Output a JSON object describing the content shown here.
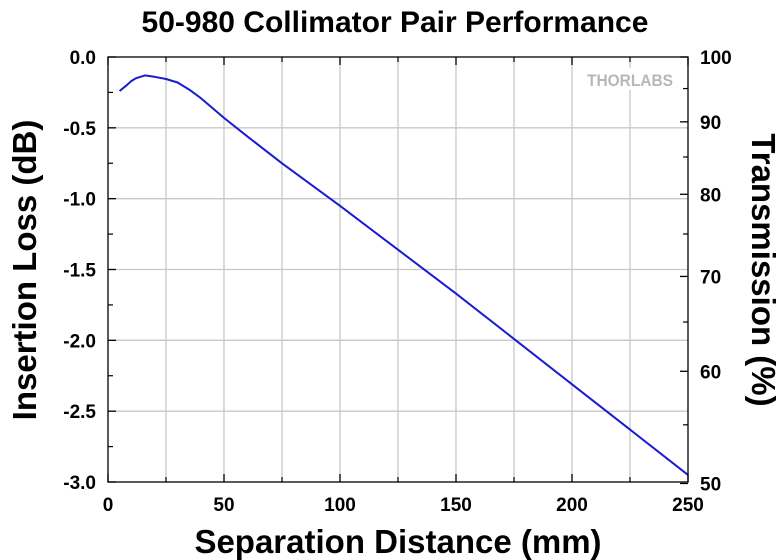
{
  "logo": {
    "text": "THORLABS",
    "color": "#b7b7b7"
  },
  "chart_data": {
    "type": "line",
    "title": "50-980 Collimator Pair Performance",
    "xlabel": "Separation Distance (mm)",
    "ylabel": "Insertion Loss (dB)",
    "y2label": "Transmission (%)",
    "xlim": [
      0,
      250
    ],
    "ylim": [
      -3.0,
      0.0
    ],
    "x_ticks": [
      0,
      50,
      100,
      150,
      200,
      250
    ],
    "y_ticks": [
      0.0,
      -0.5,
      -1.0,
      -1.5,
      -2.0,
      -2.5,
      -3.0
    ],
    "y_tick_labels": [
      "0.0",
      "-0.5",
      "-1.0",
      "-1.5",
      "-2.0",
      "-2.5",
      "-3.0"
    ],
    "y2_ticks": [
      100,
      90,
      80,
      70,
      60,
      50
    ],
    "y2_scale": "log (Transmission = 100·10^(IL/10))",
    "grid": true,
    "line_color": "#1a1ad4",
    "series": [
      {
        "x": [
          5,
          8,
          10,
          12,
          14,
          16,
          18,
          20,
          25,
          30,
          35,
          40,
          50,
          60,
          75,
          100,
          125,
          150,
          175,
          200,
          225,
          250
        ],
        "y": [
          -0.24,
          -0.2,
          -0.17,
          -0.15,
          -0.14,
          -0.13,
          -0.135,
          -0.14,
          -0.155,
          -0.18,
          -0.23,
          -0.29,
          -0.43,
          -0.56,
          -0.75,
          -1.05,
          -1.36,
          -1.67,
          -1.99,
          -2.31,
          -2.63,
          -2.95
        ]
      }
    ]
  }
}
